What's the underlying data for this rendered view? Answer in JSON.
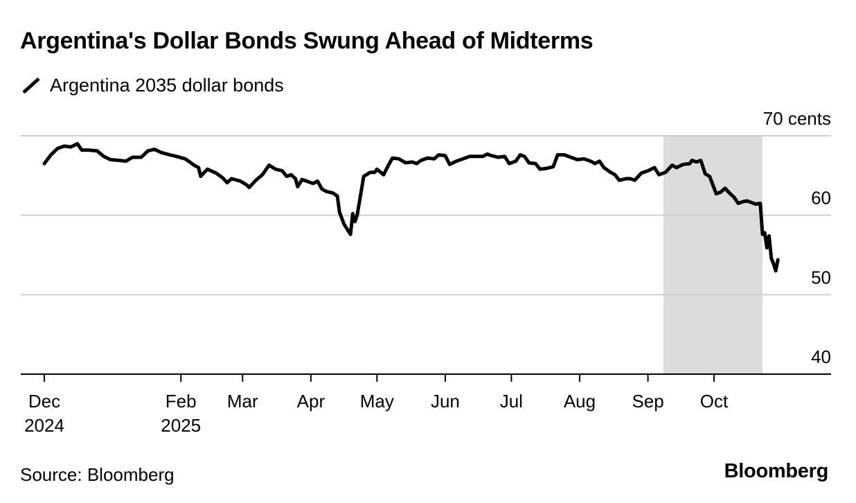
{
  "colors": {
    "line": "#000000",
    "shade": "#dcdcdc",
    "grid": "#d0d0d0",
    "axis": "#000000"
  },
  "legend_icon": "diagonal-line-icon",
  "footer": {
    "source": "Source: Bloomberg",
    "brand": "Bloomberg"
  },
  "chart_data": {
    "type": "line",
    "title": "Argentina's Dollar Bonds Swung Ahead of Midterms",
    "legend": [
      "Argentina 2035 dollar bonds"
    ],
    "xlabel": "",
    "ylabel": "",
    "unit_label": "70 cents",
    "ylim": [
      40,
      70
    ],
    "y_ticks": [
      {
        "value": 70,
        "label": "70 cents"
      },
      {
        "value": 60,
        "label": "60"
      },
      {
        "value": 50,
        "label": "50"
      },
      {
        "value": 40,
        "label": "40"
      }
    ],
    "grid": true,
    "x_range": [
      "2024-12-01",
      "2025-10-31"
    ],
    "x_ticks": [
      {
        "date": "2024-12-01",
        "label": "Dec",
        "sublabel": "2024"
      },
      {
        "date": "2025-02-01",
        "label": "Feb",
        "sublabel": "2025"
      },
      {
        "date": "2025-03-01",
        "label": "Mar",
        "sublabel": ""
      },
      {
        "date": "2025-04-01",
        "label": "Apr",
        "sublabel": ""
      },
      {
        "date": "2025-05-01",
        "label": "May",
        "sublabel": ""
      },
      {
        "date": "2025-06-01",
        "label": "Jun",
        "sublabel": ""
      },
      {
        "date": "2025-07-01",
        "label": "Jul",
        "sublabel": ""
      },
      {
        "date": "2025-08-01",
        "label": "Aug",
        "sublabel": ""
      },
      {
        "date": "2025-09-01",
        "label": "Sep",
        "sublabel": ""
      },
      {
        "date": "2025-10-01",
        "label": "Oct",
        "sublabel": ""
      }
    ],
    "highlight_range": [
      "2025-09-08",
      "2025-10-23"
    ],
    "series": [
      {
        "name": "Argentina 2035 dollar bonds",
        "points": [
          [
            "2024-12-01",
            66.5
          ],
          [
            "2024-12-04",
            67.6
          ],
          [
            "2024-12-07",
            68.4
          ],
          [
            "2024-12-10",
            68.7
          ],
          [
            "2024-12-13",
            68.6
          ],
          [
            "2024-12-16",
            69.0
          ],
          [
            "2024-12-18",
            68.2
          ],
          [
            "2024-12-21",
            68.2
          ],
          [
            "2024-12-25",
            68.1
          ],
          [
            "2024-12-28",
            67.4
          ],
          [
            "2024-12-31",
            67.0
          ],
          [
            "2025-01-04",
            66.9
          ],
          [
            "2025-01-07",
            66.8
          ],
          [
            "2025-01-10",
            67.3
          ],
          [
            "2025-01-14",
            67.3
          ],
          [
            "2025-01-17",
            68.1
          ],
          [
            "2025-01-20",
            68.3
          ],
          [
            "2025-01-23",
            67.9
          ],
          [
            "2025-01-27",
            67.6
          ],
          [
            "2025-01-30",
            67.4
          ],
          [
            "2025-02-03",
            67.1
          ],
          [
            "2025-02-07",
            66.3
          ],
          [
            "2025-02-09",
            66.0
          ],
          [
            "2025-02-10",
            64.9
          ],
          [
            "2025-02-13",
            65.8
          ],
          [
            "2025-02-17",
            65.3
          ],
          [
            "2025-02-20",
            64.7
          ],
          [
            "2025-02-22",
            64.1
          ],
          [
            "2025-02-24",
            64.6
          ],
          [
            "2025-02-28",
            64.3
          ],
          [
            "2025-03-03",
            63.8
          ],
          [
            "2025-03-04",
            63.5
          ],
          [
            "2025-03-07",
            64.4
          ],
          [
            "2025-03-10",
            65.1
          ],
          [
            "2025-03-13",
            66.3
          ],
          [
            "2025-03-16",
            65.8
          ],
          [
            "2025-03-19",
            65.6
          ],
          [
            "2025-03-21",
            64.9
          ],
          [
            "2025-03-23",
            65.1
          ],
          [
            "2025-03-25",
            64.6
          ],
          [
            "2025-03-26",
            63.6
          ],
          [
            "2025-03-28",
            64.5
          ],
          [
            "2025-03-31",
            64.2
          ],
          [
            "2025-04-02",
            64.0
          ],
          [
            "2025-04-04",
            64.3
          ],
          [
            "2025-04-06",
            63.3
          ],
          [
            "2025-04-08",
            63.0
          ],
          [
            "2025-04-11",
            62.8
          ],
          [
            "2025-04-13",
            62.4
          ],
          [
            "2025-04-14",
            60.4
          ],
          [
            "2025-04-16",
            58.9
          ],
          [
            "2025-04-18",
            58.0
          ],
          [
            "2025-04-19",
            57.6
          ],
          [
            "2025-04-20",
            60.2
          ],
          [
            "2025-04-21",
            59.2
          ],
          [
            "2025-04-22",
            60.0
          ],
          [
            "2025-04-25",
            64.9
          ],
          [
            "2025-04-28",
            65.4
          ],
          [
            "2025-04-30",
            65.4
          ],
          [
            "2025-05-01",
            65.8
          ],
          [
            "2025-05-04",
            65.1
          ],
          [
            "2025-05-06",
            66.2
          ],
          [
            "2025-05-08",
            67.2
          ],
          [
            "2025-05-11",
            67.1
          ],
          [
            "2025-05-14",
            66.6
          ],
          [
            "2025-05-17",
            66.7
          ],
          [
            "2025-05-19",
            66.5
          ],
          [
            "2025-05-21",
            66.9
          ],
          [
            "2025-05-24",
            67.2
          ],
          [
            "2025-05-27",
            67.1
          ],
          [
            "2025-05-29",
            67.6
          ],
          [
            "2025-06-01",
            67.5
          ],
          [
            "2025-06-03",
            66.4
          ],
          [
            "2025-06-06",
            66.8
          ],
          [
            "2025-06-09",
            67.1
          ],
          [
            "2025-06-12",
            67.4
          ],
          [
            "2025-06-15",
            67.4
          ],
          [
            "2025-06-18",
            67.4
          ],
          [
            "2025-06-20",
            67.7
          ],
          [
            "2025-06-22",
            67.5
          ],
          [
            "2025-06-25",
            67.3
          ],
          [
            "2025-06-28",
            67.4
          ],
          [
            "2025-06-30",
            66.5
          ],
          [
            "2025-07-03",
            66.8
          ],
          [
            "2025-07-05",
            67.6
          ],
          [
            "2025-07-07",
            67.4
          ],
          [
            "2025-07-09",
            66.6
          ],
          [
            "2025-07-12",
            66.5
          ],
          [
            "2025-07-14",
            65.8
          ],
          [
            "2025-07-17",
            65.9
          ],
          [
            "2025-07-20",
            66.1
          ],
          [
            "2025-07-22",
            67.6
          ],
          [
            "2025-07-25",
            67.6
          ],
          [
            "2025-07-28",
            67.3
          ],
          [
            "2025-07-31",
            67.0
          ],
          [
            "2025-08-03",
            67.1
          ],
          [
            "2025-08-06",
            66.8
          ],
          [
            "2025-08-08",
            66.5
          ],
          [
            "2025-08-10",
            66.8
          ],
          [
            "2025-08-12",
            66.0
          ],
          [
            "2025-08-15",
            65.4
          ],
          [
            "2025-08-17",
            65.1
          ],
          [
            "2025-08-19",
            64.4
          ],
          [
            "2025-08-22",
            64.6
          ],
          [
            "2025-08-24",
            64.6
          ],
          [
            "2025-08-26",
            64.4
          ],
          [
            "2025-08-29",
            65.3
          ],
          [
            "2025-09-01",
            65.6
          ],
          [
            "2025-09-04",
            66.0
          ],
          [
            "2025-09-06",
            65.1
          ],
          [
            "2025-09-09",
            65.4
          ],
          [
            "2025-09-12",
            66.3
          ],
          [
            "2025-09-14",
            66.0
          ],
          [
            "2025-09-17",
            66.4
          ],
          [
            "2025-09-20",
            66.5
          ],
          [
            "2025-09-21",
            66.9
          ],
          [
            "2025-09-23",
            66.7
          ],
          [
            "2025-09-25",
            66.9
          ],
          [
            "2025-09-27",
            65.2
          ],
          [
            "2025-09-29",
            64.9
          ],
          [
            "2025-10-02",
            62.7
          ],
          [
            "2025-10-04",
            62.9
          ],
          [
            "2025-10-06",
            63.4
          ],
          [
            "2025-10-08",
            62.8
          ],
          [
            "2025-10-10",
            62.3
          ],
          [
            "2025-10-12",
            61.5
          ],
          [
            "2025-10-14",
            61.7
          ],
          [
            "2025-10-16",
            61.8
          ],
          [
            "2025-10-18",
            61.6
          ],
          [
            "2025-10-20",
            61.4
          ],
          [
            "2025-10-22",
            61.5
          ],
          [
            "2025-10-23",
            57.6
          ],
          [
            "2025-10-24",
            57.8
          ],
          [
            "2025-10-25",
            55.9
          ],
          [
            "2025-10-26",
            57.4
          ],
          [
            "2025-10-27",
            54.6
          ],
          [
            "2025-10-28",
            53.9
          ],
          [
            "2025-10-29",
            53.0
          ],
          [
            "2025-10-30",
            54.4
          ]
        ]
      }
    ]
  }
}
